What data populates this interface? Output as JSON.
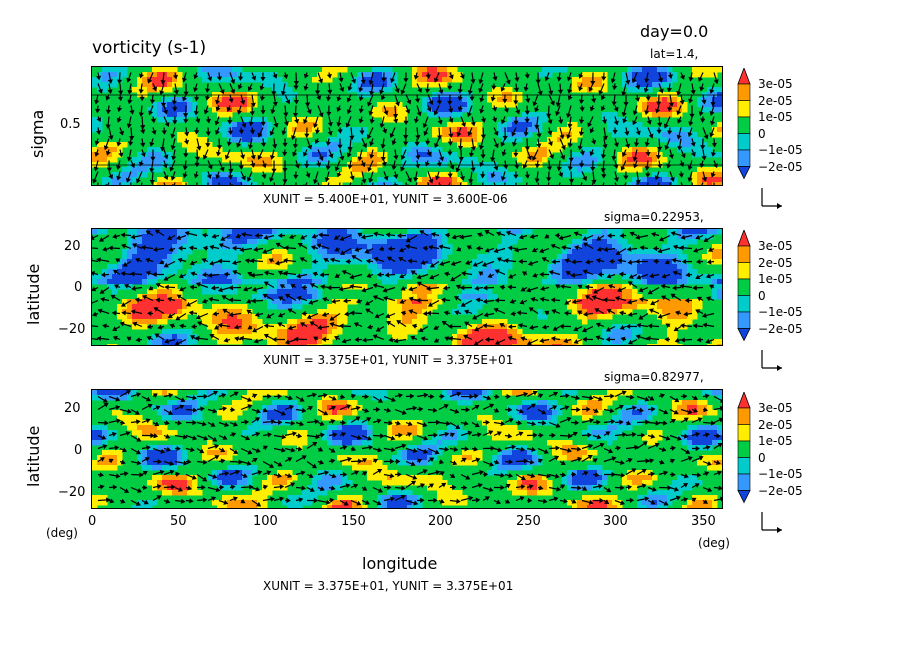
{
  "header": {
    "title": "vorticity (s-1)",
    "day": "day=0.0"
  },
  "colorbar": {
    "labels": [
      "3e-05",
      "2e-05",
      "1e-05",
      "0",
      "−1e-05",
      "−2e-05"
    ],
    "colors": [
      "#ff3030",
      "#ff9900",
      "#ffee00",
      "#00cc44",
      "#00cccc",
      "#3399ff",
      "#1144dd"
    ]
  },
  "xaxis": {
    "label": "longitude",
    "unit_left": "(deg)",
    "unit_right": "(deg)",
    "ticks": [
      "0",
      "50",
      "100",
      "150",
      "200",
      "250",
      "300",
      "350"
    ]
  },
  "panels": [
    {
      "slice": "lat=1.4,",
      "ylabel": "sigma",
      "yticks": [
        "0.5"
      ],
      "units": "XUNIT = 5.400E+01, YUNIT = 3.600E-06"
    },
    {
      "slice": "sigma=0.22953,",
      "ylabel": "latitude",
      "yticks": [
        "20",
        "0",
        "−20"
      ],
      "units": "XUNIT = 3.375E+01, YUNIT = 3.375E+01"
    },
    {
      "slice": "sigma=0.82977,",
      "ylabel": "latitude",
      "yticks": [
        "20",
        "0",
        "−20"
      ],
      "units": "XUNIT = 3.375E+01, YUNIT = 3.375E+01"
    }
  ],
  "chart_data": [
    {
      "type": "heatmap",
      "title": "vorticity (s-1)",
      "subtitle": "lat=1.4,",
      "xlabel": "",
      "ylabel": "sigma",
      "xlim": [
        0,
        360
      ],
      "ylim": [
        0,
        1
      ],
      "y_reversed": true,
      "yticks": [
        0.5
      ],
      "color_levels": [
        -2e-05,
        -1e-05,
        0,
        1e-05,
        2e-05,
        3e-05
      ],
      "overlay": "wind vectors",
      "vector_scale": {
        "xunit": "5.400E+01",
        "yunit": "3.600E-06"
      }
    },
    {
      "type": "heatmap",
      "title": "",
      "subtitle": "sigma=0.22953,",
      "xlabel": "",
      "ylabel": "latitude",
      "xlim": [
        0,
        360
      ],
      "ylim": [
        -30,
        30
      ],
      "yticks": [
        20,
        0,
        -20
      ],
      "color_levels": [
        -2e-05,
        -1e-05,
        0,
        1e-05,
        2e-05,
        3e-05
      ],
      "overlay": "wind vectors",
      "vector_scale": {
        "xunit": "3.375E+01",
        "yunit": "3.375E+01"
      }
    },
    {
      "type": "heatmap",
      "title": "",
      "subtitle": "sigma=0.82977,",
      "xlabel": "longitude",
      "ylabel": "latitude",
      "xlim": [
        0,
        360
      ],
      "ylim": [
        -30,
        30
      ],
      "xticks": [
        0,
        50,
        100,
        150,
        200,
        250,
        300,
        350
      ],
      "yticks": [
        20,
        0,
        -20
      ],
      "color_levels": [
        -2e-05,
        -1e-05,
        0,
        1e-05,
        2e-05,
        3e-05
      ],
      "overlay": "wind vectors",
      "vector_scale": {
        "xunit": "3.375E+01",
        "yunit": "3.375E+01"
      }
    }
  ]
}
